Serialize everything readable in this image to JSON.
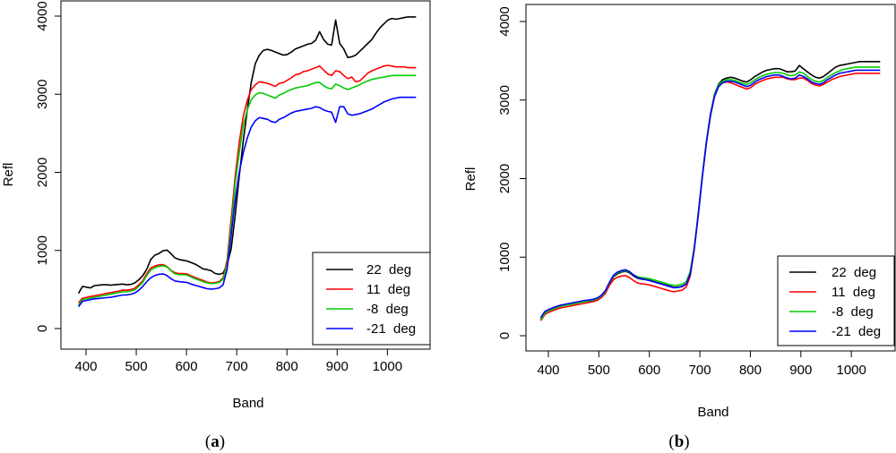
{
  "chart_data": [
    {
      "type": "line",
      "panel_label": "(a)",
      "panel_label_letter": "a",
      "xlabel": "Band",
      "ylabel": "Refl",
      "xlim": [
        385,
        1060
      ],
      "ylim": [
        0,
        4000
      ],
      "xticks": [
        400,
        500,
        600,
        700,
        800,
        900,
        1000
      ],
      "yticks": [
        0,
        1000,
        2000,
        3000,
        4000
      ],
      "grid": false,
      "legend": "bottom-right",
      "x": [
        385,
        393,
        401,
        409,
        417,
        425,
        433,
        441,
        449,
        457,
        465,
        473,
        481,
        489,
        497,
        505,
        513,
        521,
        529,
        537,
        545,
        553,
        561,
        569,
        577,
        585,
        593,
        601,
        609,
        617,
        625,
        633,
        641,
        649,
        657,
        665,
        673,
        681,
        689,
        697,
        705,
        713,
        721,
        729,
        737,
        745,
        753,
        761,
        769,
        777,
        785,
        793,
        801,
        809,
        817,
        825,
        833,
        841,
        849,
        857,
        865,
        873,
        881,
        889,
        897,
        905,
        913,
        921,
        929,
        937,
        945,
        953,
        961,
        969,
        977,
        985,
        993,
        1001,
        1009,
        1017,
        1025,
        1033,
        1041,
        1049,
        1057
      ],
      "series": [
        {
          "name": "22  deg",
          "color": "#000000",
          "values": [
            450,
            540,
            530,
            520,
            550,
            555,
            560,
            560,
            555,
            560,
            565,
            570,
            560,
            565,
            585,
            625,
            675,
            760,
            885,
            940,
            960,
            995,
            1005,
            960,
            905,
            885,
            875,
            865,
            845,
            825,
            795,
            765,
            755,
            740,
            705,
            695,
            710,
            820,
            1020,
            1450,
            1950,
            2400,
            2800,
            3150,
            3390,
            3500,
            3560,
            3575,
            3560,
            3540,
            3520,
            3500,
            3510,
            3540,
            3580,
            3600,
            3620,
            3640,
            3650,
            3690,
            3800,
            3700,
            3640,
            3630,
            3950,
            3650,
            3580,
            3470,
            3480,
            3500,
            3550,
            3600,
            3650,
            3700,
            3780,
            3850,
            3900,
            3950,
            3970,
            3960,
            3970,
            3980,
            3990,
            3990,
            3990
          ]
        },
        {
          "name": "11  deg",
          "color": "#ff0000",
          "values": [
            330,
            390,
            400,
            410,
            420,
            430,
            440,
            450,
            460,
            470,
            480,
            490,
            490,
            500,
            515,
            560,
            610,
            705,
            775,
            800,
            815,
            820,
            795,
            745,
            715,
            705,
            705,
            700,
            675,
            655,
            635,
            615,
            595,
            585,
            590,
            600,
            650,
            880,
            1400,
            1950,
            2380,
            2720,
            2920,
            3060,
            3120,
            3160,
            3150,
            3140,
            3120,
            3100,
            3140,
            3150,
            3180,
            3210,
            3250,
            3260,
            3290,
            3300,
            3320,
            3340,
            3360,
            3310,
            3260,
            3240,
            3300,
            3290,
            3240,
            3200,
            3220,
            3160,
            3170,
            3220,
            3270,
            3300,
            3320,
            3340,
            3360,
            3370,
            3360,
            3350,
            3350,
            3350,
            3340,
            3340,
            3340
          ]
        },
        {
          "name": "-8  deg",
          "color": "#00cc00",
          "values": [
            300,
            370,
            380,
            390,
            400,
            410,
            420,
            430,
            440,
            450,
            460,
            470,
            470,
            480,
            495,
            540,
            590,
            680,
            750,
            780,
            795,
            805,
            790,
            740,
            700,
            690,
            690,
            685,
            660,
            640,
            620,
            600,
            585,
            575,
            580,
            590,
            630,
            830,
            1300,
            1850,
            2250,
            2600,
            2800,
            2930,
            2990,
            3020,
            3010,
            2990,
            2970,
            2950,
            2990,
            3010,
            3040,
            3060,
            3080,
            3090,
            3100,
            3110,
            3130,
            3150,
            3150,
            3110,
            3080,
            3070,
            3130,
            3110,
            3080,
            3060,
            3080,
            3100,
            3120,
            3150,
            3170,
            3190,
            3200,
            3210,
            3220,
            3230,
            3240,
            3240,
            3240,
            3240,
            3240,
            3240,
            3240
          ]
        },
        {
          "name": "-21  deg",
          "color": "#0000ff",
          "values": [
            280,
            350,
            360,
            370,
            380,
            385,
            390,
            395,
            400,
            410,
            420,
            430,
            430,
            440,
            455,
            490,
            540,
            600,
            650,
            680,
            695,
            700,
            680,
            640,
            610,
            600,
            595,
            590,
            570,
            555,
            540,
            525,
            510,
            505,
            510,
            520,
            560,
            760,
            1200,
            1650,
            2000,
            2250,
            2440,
            2580,
            2660,
            2700,
            2690,
            2680,
            2650,
            2640,
            2680,
            2700,
            2730,
            2760,
            2780,
            2790,
            2800,
            2810,
            2820,
            2840,
            2830,
            2800,
            2780,
            2770,
            2640,
            2840,
            2840,
            2750,
            2730,
            2740,
            2750,
            2770,
            2790,
            2810,
            2840,
            2870,
            2900,
            2920,
            2940,
            2950,
            2960,
            2960,
            2960,
            2960,
            2960
          ]
        }
      ]
    },
    {
      "type": "line",
      "panel_label": "(b)",
      "panel_label_letter": "b",
      "xlabel": "Band",
      "ylabel": "Refl",
      "xlim": [
        385,
        1060
      ],
      "ylim": [
        0,
        4000
      ],
      "xticks": [
        400,
        500,
        600,
        700,
        800,
        900,
        1000
      ],
      "yticks": [
        0,
        1000,
        2000,
        3000,
        4000
      ],
      "grid": false,
      "legend": "bottom-right",
      "x": [
        385,
        393,
        401,
        409,
        417,
        425,
        433,
        441,
        449,
        457,
        465,
        473,
        481,
        489,
        497,
        505,
        513,
        521,
        529,
        537,
        545,
        553,
        561,
        569,
        577,
        585,
        593,
        601,
        609,
        617,
        625,
        633,
        641,
        649,
        657,
        665,
        673,
        681,
        689,
        697,
        705,
        713,
        721,
        729,
        737,
        745,
        753,
        761,
        769,
        777,
        785,
        793,
        801,
        809,
        817,
        825,
        833,
        841,
        849,
        857,
        865,
        873,
        881,
        889,
        897,
        905,
        913,
        921,
        929,
        937,
        945,
        953,
        961,
        969,
        977,
        985,
        993,
        1001,
        1009,
        1017,
        1025,
        1033,
        1041,
        1049,
        1057
      ],
      "series": [
        {
          "name": "22  deg",
          "color": "#000000",
          "values": [
            210,
            300,
            330,
            350,
            370,
            380,
            390,
            400,
            410,
            420,
            430,
            440,
            440,
            450,
            465,
            500,
            560,
            660,
            750,
            790,
            810,
            820,
            800,
            760,
            730,
            720,
            715,
            705,
            690,
            675,
            660,
            645,
            630,
            615,
            620,
            630,
            660,
            800,
            1120,
            1560,
            2040,
            2470,
            2820,
            3070,
            3200,
            3260,
            3280,
            3290,
            3280,
            3260,
            3240,
            3230,
            3260,
            3300,
            3330,
            3360,
            3380,
            3390,
            3400,
            3400,
            3380,
            3360,
            3360,
            3370,
            3440,
            3400,
            3360,
            3320,
            3290,
            3280,
            3300,
            3340,
            3380,
            3420,
            3440,
            3450,
            3460,
            3470,
            3480,
            3490,
            3490,
            3490,
            3490,
            3490,
            3490
          ]
        },
        {
          "name": "11  deg",
          "color": "#ff0000",
          "values": [
            190,
            270,
            300,
            320,
            340,
            355,
            365,
            375,
            385,
            395,
            405,
            415,
            425,
            435,
            450,
            485,
            540,
            640,
            715,
            745,
            760,
            765,
            740,
            700,
            670,
            660,
            655,
            645,
            630,
            615,
            600,
            585,
            570,
            560,
            570,
            580,
            620,
            760,
            1100,
            1550,
            2030,
            2460,
            2800,
            3050,
            3170,
            3220,
            3230,
            3220,
            3200,
            3180,
            3160,
            3140,
            3160,
            3200,
            3230,
            3250,
            3270,
            3280,
            3290,
            3290,
            3290,
            3270,
            3260,
            3260,
            3280,
            3280,
            3250,
            3210,
            3190,
            3180,
            3200,
            3230,
            3260,
            3280,
            3300,
            3310,
            3320,
            3330,
            3340,
            3340,
            3340,
            3340,
            3340,
            3340,
            3340
          ]
        },
        {
          "name": "-8  deg",
          "color": "#00cc00",
          "values": [
            200,
            290,
            320,
            340,
            360,
            375,
            385,
            395,
            405,
            415,
            425,
            435,
            445,
            455,
            470,
            505,
            565,
            670,
            760,
            800,
            820,
            830,
            810,
            775,
            750,
            740,
            735,
            725,
            710,
            695,
            680,
            665,
            650,
            640,
            645,
            655,
            690,
            820,
            1130,
            1560,
            2040,
            2470,
            2810,
            3060,
            3190,
            3240,
            3260,
            3260,
            3250,
            3230,
            3210,
            3200,
            3220,
            3260,
            3290,
            3310,
            3330,
            3340,
            3350,
            3350,
            3340,
            3320,
            3310,
            3320,
            3360,
            3340,
            3300,
            3260,
            3240,
            3230,
            3250,
            3290,
            3320,
            3350,
            3370,
            3390,
            3400,
            3410,
            3420,
            3420,
            3420,
            3420,
            3420,
            3420,
            3420
          ]
        },
        {
          "name": "-21  deg",
          "color": "#0000ff",
          "values": [
            230,
            310,
            335,
            355,
            375,
            390,
            400,
            410,
            420,
            430,
            440,
            450,
            455,
            465,
            480,
            515,
            575,
            680,
            770,
            810,
            830,
            840,
            815,
            770,
            740,
            725,
            715,
            700,
            685,
            670,
            655,
            640,
            625,
            610,
            615,
            625,
            655,
            790,
            1110,
            1550,
            2030,
            2460,
            2800,
            3040,
            3170,
            3220,
            3240,
            3240,
            3230,
            3210,
            3190,
            3170,
            3190,
            3230,
            3260,
            3280,
            3300,
            3310,
            3320,
            3320,
            3300,
            3280,
            3270,
            3280,
            3320,
            3300,
            3270,
            3230,
            3210,
            3200,
            3220,
            3260,
            3290,
            3320,
            3340,
            3350,
            3360,
            3370,
            3380,
            3380,
            3380,
            3380,
            3380,
            3380,
            3380
          ]
        }
      ]
    }
  ]
}
